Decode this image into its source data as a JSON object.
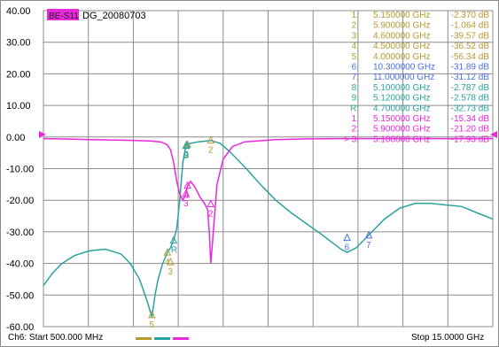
{
  "title_box": {
    "badge": "BE-S11",
    "name": "DG_20080703"
  },
  "footer": {
    "start": "Ch6: Start  500.000 MHz",
    "stop": "Stop  15.0000 GHz"
  },
  "colors": {
    "grid": "#8c8c8c",
    "s21": "#2aa3a0",
    "s11": "#ea28dc",
    "tan": "#b59a32",
    "blue": "#4a6ee0",
    "badge_bg": "#ea28dc",
    "ref_marker": "#ea28dc"
  },
  "chart_data": {
    "type": "line",
    "title": "",
    "xlabel": "",
    "ylabel": "",
    "xlim": [
      0.5,
      15.0
    ],
    "ylim": [
      -60,
      40
    ],
    "y_ticks": [
      "40.00",
      "30.00",
      "20.00",
      "10.00",
      "0.00",
      "-10.00",
      "-20.00",
      "-30.00",
      "-40.00",
      "-50.00",
      "-60.00"
    ],
    "y_tick_values": [
      40,
      30,
      20,
      10,
      0,
      -10,
      -20,
      -30,
      -40,
      -50,
      -60
    ],
    "grid": true,
    "series": [
      {
        "color": "#2aa3a0",
        "x": [
          0.5,
          0.8,
          1.1,
          1.5,
          2.0,
          2.5,
          3.0,
          3.3,
          3.6,
          3.85,
          4.0,
          4.1,
          4.2,
          4.35,
          4.5,
          4.6,
          4.7,
          4.8,
          4.9,
          5.0,
          5.1,
          5.12,
          5.15,
          5.25,
          5.5,
          5.9,
          6.2,
          6.5,
          7.0,
          7.5,
          8.0,
          8.5,
          9.0,
          9.5,
          9.9,
          10.1,
          10.3,
          10.6,
          11.0,
          11.5,
          12.0,
          12.5,
          13.0,
          13.5,
          14.0,
          14.5,
          15.0
        ],
        "y": [
          -47,
          -43,
          -40,
          -37.5,
          -36,
          -35.5,
          -37,
          -40,
          -45,
          -52,
          -57,
          -50,
          -45,
          -40,
          -36.5,
          -35,
          -32.7,
          -29,
          -20,
          -8,
          -2.8,
          -2.6,
          -2.4,
          -2.0,
          -1.5,
          -1.1,
          -2.0,
          -4.5,
          -9.5,
          -15,
          -20,
          -24,
          -27.5,
          -31,
          -34,
          -35.5,
          -36.5,
          -35,
          -31,
          -26,
          -22.5,
          -21,
          -21,
          -21.5,
          -22,
          -24,
          -26
        ]
      },
      {
        "color": "#ea28dc",
        "x": [
          0.5,
          1.0,
          1.5,
          2.0,
          2.5,
          3.0,
          3.5,
          4.0,
          4.3,
          4.5,
          4.6,
          4.7,
          4.8,
          4.9,
          5.0,
          5.1,
          5.15,
          5.25,
          5.4,
          5.55,
          5.7,
          5.8,
          5.85,
          5.9,
          5.95,
          6.1,
          6.3,
          6.6,
          7.0,
          8.0,
          9.0,
          10.0,
          11.0,
          12.0,
          13.0,
          14.0,
          15.0
        ],
        "y": [
          -0.5,
          -0.6,
          -0.7,
          -0.8,
          -0.9,
          -1.0,
          -1.1,
          -1.3,
          -1.6,
          -2.5,
          -4,
          -8,
          -14,
          -18,
          -20,
          -18,
          -15.5,
          -14,
          -16,
          -19,
          -21,
          -23,
          -30,
          -40,
          -34,
          -15,
          -7,
          -3,
          -1.5,
          -0.8,
          -0.6,
          -0.5,
          -0.5,
          -0.5,
          -0.5,
          -0.5,
          -0.5
        ]
      }
    ],
    "markers_table": [
      {
        "id": "1:",
        "freq": "5.150000 GHz",
        "value": "-2.370 dB",
        "color": "#b59a32"
      },
      {
        "id": "2:",
        "freq": "5.900000 GHz",
        "value": "-1.064 dB",
        "color": "#b59a32"
      },
      {
        "id": "3:",
        "freq": "4.600000 GHz",
        "value": "-39.57 dB",
        "color": "#b59a32"
      },
      {
        "id": "4:",
        "freq": "4.500000 GHz",
        "value": "-36.52 dB",
        "color": "#b59a32"
      },
      {
        "id": "5:",
        "freq": "4.000000 GHz",
        "value": "-56.34 dB",
        "color": "#b59a32"
      },
      {
        "id": "6:",
        "freq": "10.300000 GHz",
        "value": "-31.89 dB",
        "color": "#4a6ee0"
      },
      {
        "id": "7:",
        "freq": "11.000000 GHz",
        "value": "-31.12 dB",
        "color": "#4a6ee0"
      },
      {
        "id": "8:",
        "freq": "5.100000 GHz",
        "value": "-2.787 dB",
        "color": "#2aa3a0"
      },
      {
        "id": "9:",
        "freq": "5.120000 GHz",
        "value": "-2.578 dB",
        "color": "#2aa3a0"
      },
      {
        "id": "R:",
        "freq": "4.700000 GHz",
        "value": "-32.73 dB",
        "color": "#2aa3a0"
      },
      {
        "id": "1:",
        "freq": "5.150000 GHz",
        "value": "-15.34 dB",
        "color": "#ea28dc"
      },
      {
        "id": "2:",
        "freq": "5.900000 GHz",
        "value": "-21.20 dB",
        "color": "#ea28dc"
      },
      {
        "id": "> 3:",
        "freq": "5.100000 GHz",
        "value": "-17.93 dB",
        "color": "#ea28dc"
      }
    ],
    "plot_markers": [
      {
        "label": "1",
        "x": 5.15,
        "y": -2.37,
        "color": "#b59a32"
      },
      {
        "label": "2",
        "x": 5.9,
        "y": -1.06,
        "color": "#b59a32"
      },
      {
        "label": "3",
        "x": 4.6,
        "y": -39.57,
        "color": "#b59a32"
      },
      {
        "label": "4",
        "x": 4.5,
        "y": -36.52,
        "color": "#b59a32"
      },
      {
        "label": "5",
        "x": 4.0,
        "y": -56.34,
        "color": "#b59a32"
      },
      {
        "label": "6",
        "x": 10.3,
        "y": -31.89,
        "color": "#4a6ee0"
      },
      {
        "label": "7",
        "x": 11.0,
        "y": -31.12,
        "color": "#4a6ee0"
      },
      {
        "label": "8",
        "x": 5.1,
        "y": -2.79,
        "color": "#2aa3a0"
      },
      {
        "label": "9",
        "x": 5.12,
        "y": -2.58,
        "color": "#2aa3a0"
      },
      {
        "label": "R",
        "x": 4.7,
        "y": -32.73,
        "color": "#2aa3a0"
      },
      {
        "label": "1",
        "x": 5.15,
        "y": -15.34,
        "color": "#ea28dc"
      },
      {
        "label": "2",
        "x": 5.9,
        "y": -21.2,
        "color": "#ea28dc"
      },
      {
        "label": "3",
        "x": 5.1,
        "y": -17.93,
        "color": "#ea28dc"
      }
    ]
  }
}
